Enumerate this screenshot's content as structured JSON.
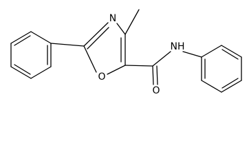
{
  "atoms": {
    "ring_nitrogen": "N",
    "ring_oxygen": "O",
    "carbonyl_oxygen": "O",
    "amide_nitrogen": "NH"
  }
}
